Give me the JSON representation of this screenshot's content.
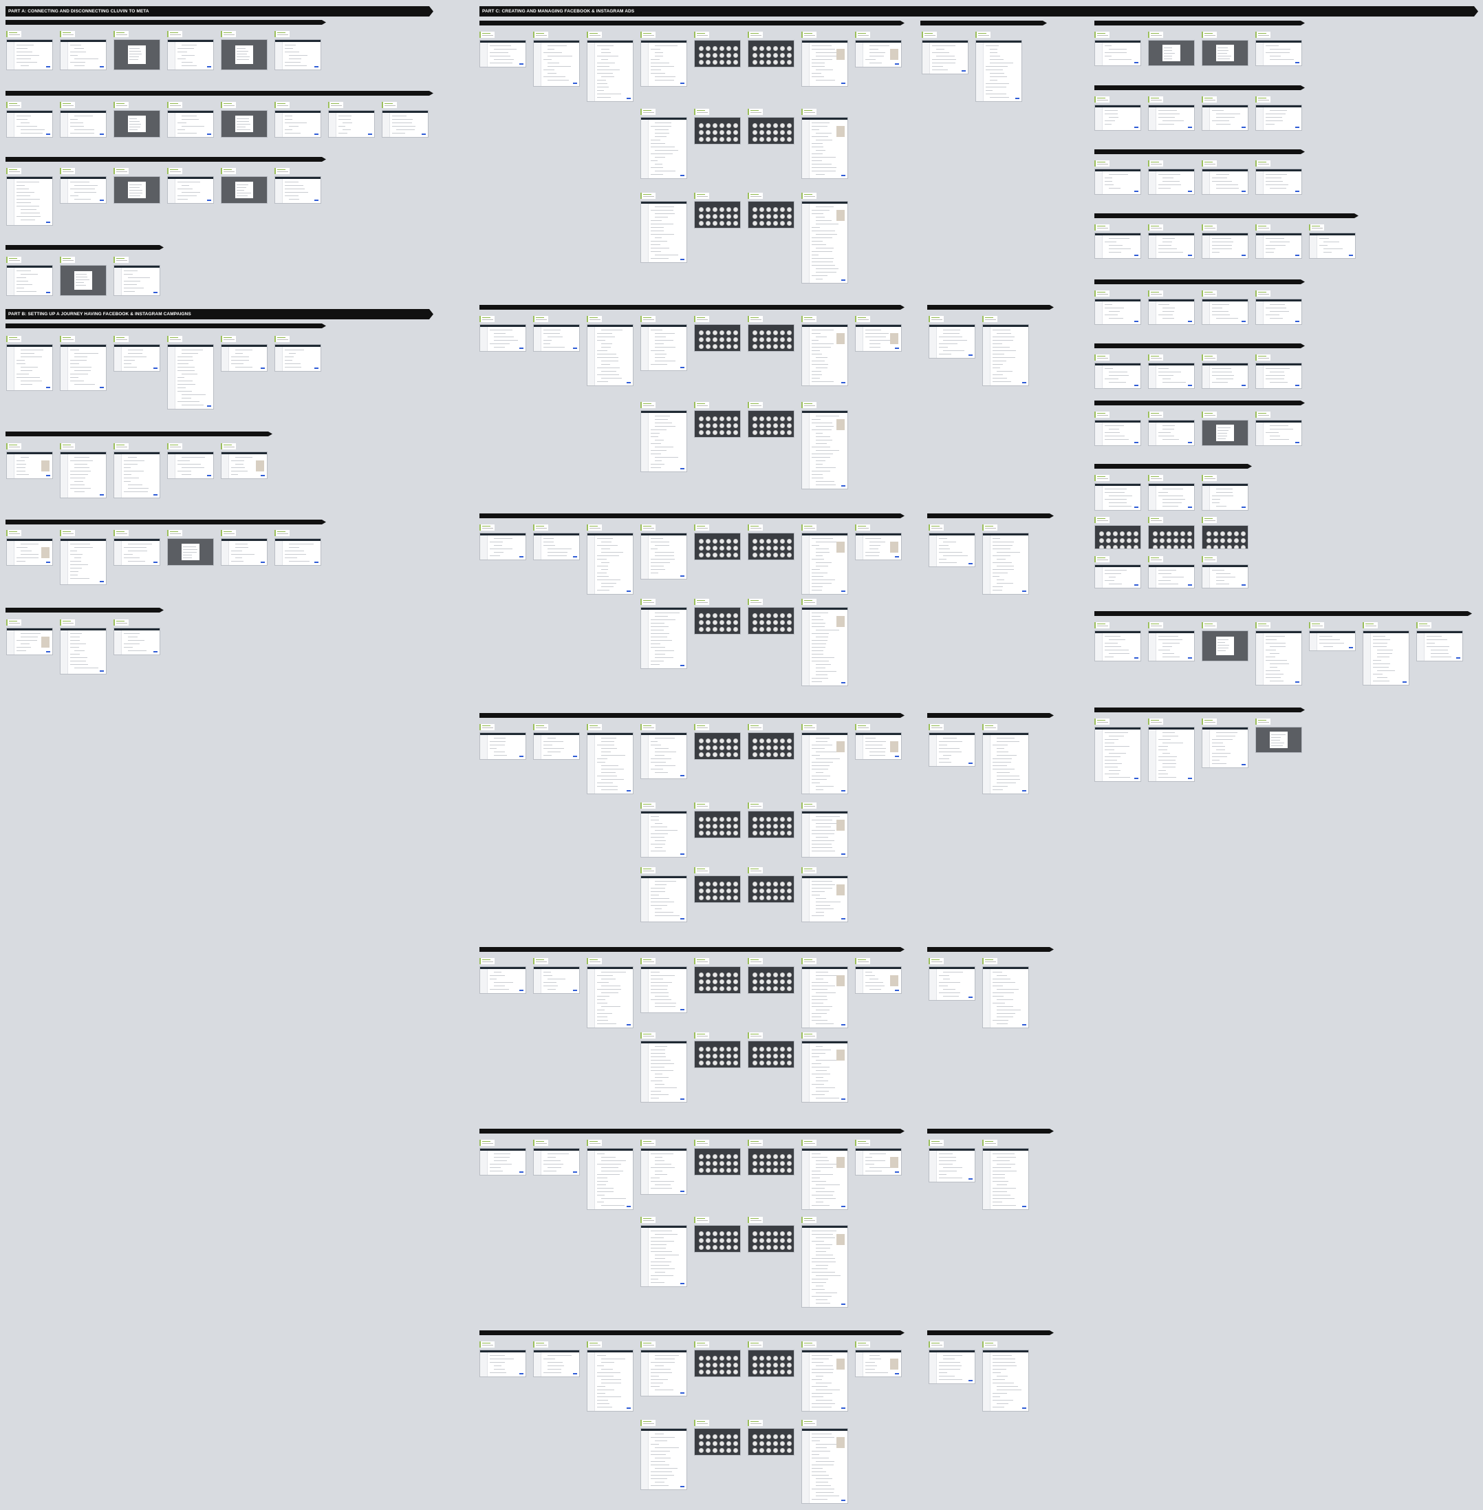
{
  "parts": {
    "part_a": "PART A: CONNECTING AND DISCONNECTING CLUVIN TO META",
    "part_b": "PART B: SETTING UP A JOURNEY HAVING FACEBOOK & INSTAGRAM CAMPAIGNS",
    "part_c": "PART C: CREATING AND MANAGING FACEBOOK & INSTAGRAM ADS"
  },
  "theme": {
    "background": "#d8dbe0",
    "banner": "#111111",
    "note_accent": "#9bbf5a",
    "button": "#2f5cd6"
  },
  "flows": []
}
